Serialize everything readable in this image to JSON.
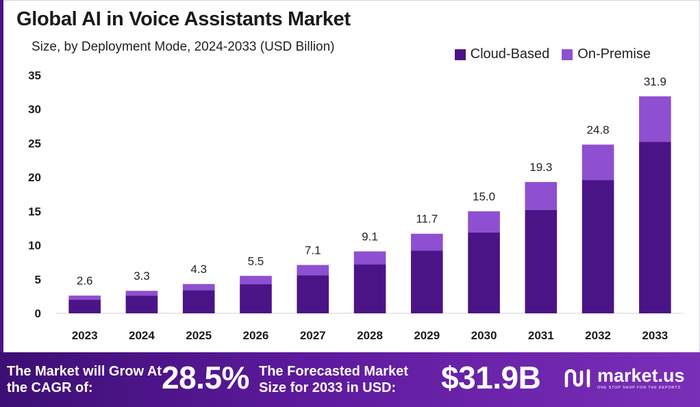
{
  "header": {
    "title": "Global AI in Voice Assistants Market",
    "subtitle": "Size, by Deployment Mode, 2024-2033 (USD Billion)"
  },
  "colors": {
    "cloud": "#4a1486",
    "on_premise": "#8e4fd1",
    "banner_start": "#3c0f74",
    "banner_end": "#7a2fb8"
  },
  "chart_data": {
    "type": "bar",
    "stacked": true,
    "categories": [
      "2023",
      "2024",
      "2025",
      "2026",
      "2027",
      "2028",
      "2029",
      "2030",
      "2031",
      "2032",
      "2033"
    ],
    "series": [
      {
        "name": "Cloud-Based",
        "values": [
          2.0,
          2.6,
          3.4,
          4.3,
          5.6,
          7.2,
          9.2,
          11.9,
          15.2,
          19.6,
          25.2
        ]
      },
      {
        "name": "On-Premise",
        "values": [
          0.6,
          0.7,
          0.9,
          1.2,
          1.5,
          1.9,
          2.5,
          3.1,
          4.1,
          5.2,
          6.7
        ]
      }
    ],
    "totals": [
      "2.6",
      "3.3",
      "4.3",
      "5.5",
      "7.1",
      "9.1",
      "11.7",
      "15.0",
      "19.3",
      "24.8",
      "31.9"
    ],
    "ylim": [
      0,
      35
    ],
    "yticks": [
      "0",
      "5",
      "10",
      "15",
      "20",
      "25",
      "30",
      "35"
    ],
    "grid": false,
    "legend_position": "top-right"
  },
  "banner": {
    "cagr_text": "The Market will Grow At the CAGR of:",
    "cagr_value": "28.5%",
    "forecast_text": "The Forecasted Market Size for 2033 in USD:",
    "forecast_value": "$31.9B",
    "brand_name": "market.us",
    "brand_tagline": "ONE STOP SHOP FOR THE REPORTS",
    "brand_icon": "market-us-logo-icon"
  }
}
